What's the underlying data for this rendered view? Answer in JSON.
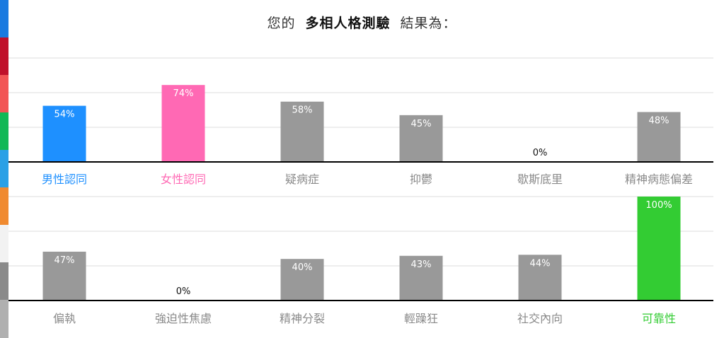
{
  "title": {
    "prefix": "您的",
    "test_name": "多相人格測驗",
    "suffix": "結果為："
  },
  "sidebar_colors": [
    "#1a7ae0",
    "#c0102a",
    "#f25555",
    "#12b856",
    "#2aa0e6",
    "#f08a30",
    "#f2f2f2",
    "#8a8a8a",
    "#b0b0b0"
  ],
  "colors": {
    "default_bar": "#999999",
    "male": "#1e90ff",
    "female": "#ff69b4",
    "valid": "#33cc33",
    "default_label": "#8a8a8a"
  },
  "chart_data": [
    {
      "type": "bar",
      "ylim": [
        0,
        100
      ],
      "grid": true,
      "categories": [
        "男性認同",
        "女性認同",
        "疑病症",
        "抑鬱",
        "歇斯底里",
        "精神病態偏差"
      ],
      "values": [
        54,
        74,
        58,
        45,
        0,
        48
      ],
      "data_labels": [
        "54%",
        "74%",
        "58%",
        "45%",
        "0%",
        "48%"
      ],
      "bar_colors": [
        "#1e90ff",
        "#ff69b4",
        "#999999",
        "#999999",
        "#999999",
        "#999999"
      ],
      "label_colors": [
        "#1e90ff",
        "#ff69b4",
        "#8a8a8a",
        "#8a8a8a",
        "#8a8a8a",
        "#8a8a8a"
      ]
    },
    {
      "type": "bar",
      "ylim": [
        0,
        100
      ],
      "grid": true,
      "categories": [
        "偏執",
        "強迫性焦慮",
        "精神分裂",
        "輕躁狂",
        "社交內向",
        "可靠性"
      ],
      "values": [
        47,
        0,
        40,
        43,
        44,
        100
      ],
      "data_labels": [
        "47%",
        "0%",
        "40%",
        "43%",
        "44%",
        "100%"
      ],
      "bar_colors": [
        "#999999",
        "#999999",
        "#999999",
        "#999999",
        "#999999",
        "#33cc33"
      ],
      "label_colors": [
        "#8a8a8a",
        "#8a8a8a",
        "#8a8a8a",
        "#8a8a8a",
        "#8a8a8a",
        "#33cc33"
      ]
    }
  ]
}
